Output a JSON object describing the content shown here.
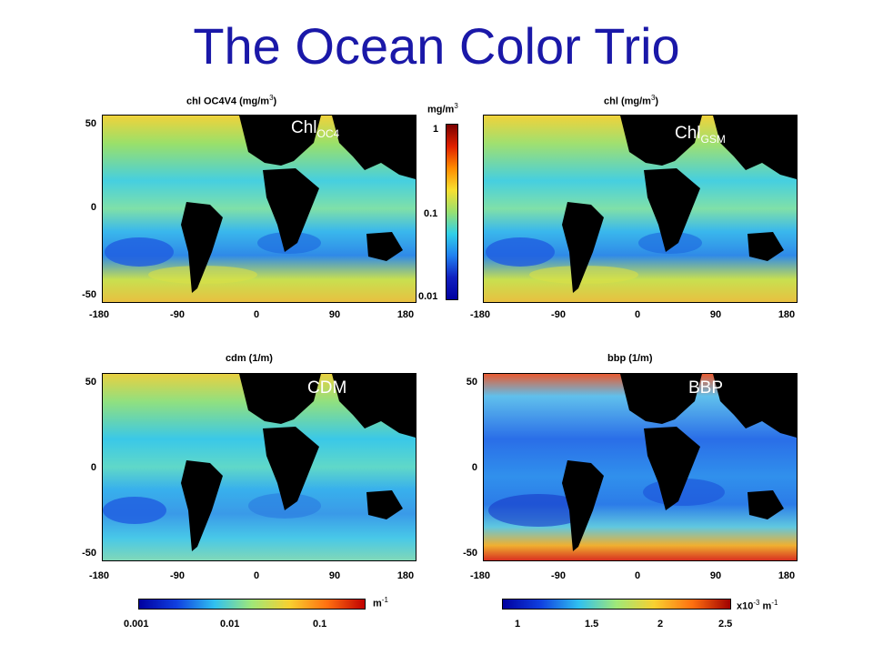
{
  "title": "The Ocean Color Trio",
  "panels": [
    {
      "id": "chl-oc4",
      "title_base": "chl OC4V4 (mg/m",
      "title_sup": "3",
      "title_end": ")",
      "overlay_main": "Chl",
      "overlay_sub": "OC4"
    },
    {
      "id": "chl-gsm",
      "title_base": "chl (mg/m",
      "title_sup": "3",
      "title_end": ")",
      "overlay_main": "Chl",
      "overlay_sub": "GSM"
    },
    {
      "id": "cdm",
      "title_base": "cdm (1/m)",
      "title_sup": "",
      "title_end": "",
      "overlay_main": "CDM",
      "overlay_sub": ""
    },
    {
      "id": "bbp",
      "title_base": "bbp (1/m)",
      "title_sup": "",
      "title_end": "",
      "overlay_main": "BBP",
      "overlay_sub": ""
    }
  ],
  "axes": {
    "y_ticks": [
      "50",
      "0",
      "-50"
    ],
    "x_ticks": [
      "-180",
      "-90",
      "0",
      "90",
      "180"
    ]
  },
  "colorbars": {
    "chl": {
      "unit_base": "mg/m",
      "unit_sup": "3",
      "ticks": [
        "1",
        "0.1",
        "0.01"
      ]
    },
    "cdm": {
      "unit_base": "m",
      "unit_sup": "-1",
      "ticks": [
        "0.001",
        "0.01",
        "0.1"
      ]
    },
    "bbp": {
      "unit_prefix": "x10",
      "unit_prefix_sup": "-3",
      "unit_base": " m",
      "unit_sup": "-1",
      "ticks": [
        "1",
        "1.5",
        "2",
        "2.5"
      ]
    }
  },
  "colors": {
    "title": "#1a18a8",
    "land": "#000000",
    "ocean_base": "#35c3e0"
  }
}
